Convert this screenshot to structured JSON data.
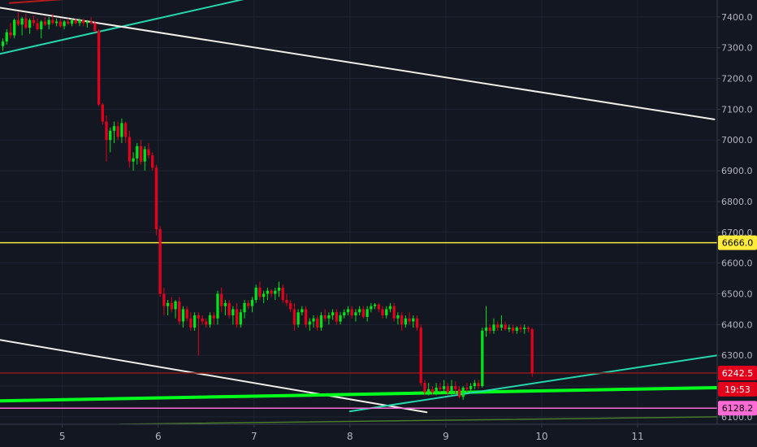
{
  "chart_data": {
    "type": "candlestick",
    "x_ticks": [
      "5",
      "6",
      "7",
      "8",
      "9",
      "10",
      "11"
    ],
    "y_ticks": [
      "6100.0",
      "6200.0",
      "6300.0",
      "6400.0",
      "6500.0",
      "6600.0",
      "6700.0",
      "6800.0",
      "6900.0",
      "7000.0",
      "7100.0",
      "7200.0",
      "7300.0",
      "7400.0"
    ],
    "ylim": [
      6076,
      7455
    ],
    "xlim": [
      4.35,
      11.83
    ],
    "grid": true,
    "horizontal_levels": [
      {
        "label": "6666.0",
        "value": 6666.0,
        "color": "#ffeb3b",
        "text_color": "#000000"
      },
      {
        "label": "6242.5",
        "value": 6242.5,
        "color": "#e3001b",
        "text_color": "#ffffff",
        "line_color": "#8b1a1a"
      },
      {
        "label": "6128.2",
        "value": 6128.2,
        "color": "#ff6bd5",
        "text_color": "#000000"
      }
    ],
    "countdown": {
      "label": "19:53",
      "value": 6190,
      "color": "#e3001b",
      "text_color": "#ffffff"
    },
    "trendlines": [
      {
        "name": "upper-channel-line",
        "color": "#26d7ae",
        "width": 2,
        "points": [
          [
            4.35,
            7280
          ],
          [
            7.5,
            7500
          ]
        ]
      },
      {
        "name": "top-red-line",
        "color": "#b71c1c",
        "width": 2,
        "points": [
          [
            4.45,
            7445
          ],
          [
            7.15,
            7505
          ]
        ]
      },
      {
        "name": "white-resistance-line",
        "color": "#f0eee6",
        "width": 2,
        "points": [
          [
            4.35,
            7430
          ],
          [
            11.8,
            7067
          ]
        ]
      },
      {
        "name": "white-lower-line",
        "color": "#f0eee6",
        "width": 2,
        "points": [
          [
            4.35,
            6350
          ],
          [
            8.8,
            6115
          ]
        ]
      },
      {
        "name": "green-support-line",
        "color": "#00ff1a",
        "width": 4,
        "points": [
          [
            4.35,
            6152
          ],
          [
            11.83,
            6195
          ]
        ]
      },
      {
        "name": "cyan-support-line",
        "color": "#26d7ae",
        "width": 2,
        "points": [
          [
            8.0,
            6118
          ],
          [
            11.83,
            6300
          ]
        ]
      },
      {
        "name": "olive-lower-line",
        "color": "#4a7a2a",
        "width": 1.5,
        "points": [
          [
            5.6,
            6076
          ],
          [
            11.83,
            6100
          ]
        ]
      }
    ],
    "candles": [
      [
        4.38,
        7305,
        7330,
        7290,
        7320
      ],
      [
        4.42,
        7320,
        7360,
        7310,
        7350
      ],
      [
        4.46,
        7350,
        7380,
        7330,
        7340
      ],
      [
        4.5,
        7340,
        7395,
        7330,
        7390
      ],
      [
        4.54,
        7390,
        7415,
        7370,
        7375
      ],
      [
        4.58,
        7375,
        7400,
        7340,
        7395
      ],
      [
        4.62,
        7395,
        7410,
        7360,
        7365
      ],
      [
        4.66,
        7365,
        7395,
        7345,
        7390
      ],
      [
        4.7,
        7390,
        7405,
        7370,
        7380
      ],
      [
        4.74,
        7380,
        7395,
        7355,
        7360
      ],
      [
        4.78,
        7360,
        7390,
        7330,
        7385
      ],
      [
        4.82,
        7385,
        7400,
        7370,
        7375
      ],
      [
        4.86,
        7375,
        7400,
        7360,
        7390
      ],
      [
        4.9,
        7390,
        7410,
        7375,
        7380
      ],
      [
        4.94,
        7380,
        7395,
        7370,
        7385
      ],
      [
        4.98,
        7385,
        7395,
        7365,
        7370
      ],
      [
        5.02,
        7370,
        7390,
        7360,
        7385
      ],
      [
        5.06,
        7385,
        7395,
        7375,
        7378
      ],
      [
        5.1,
        7378,
        7395,
        7370,
        7390
      ],
      [
        5.14,
        7390,
        7395,
        7375,
        7380
      ],
      [
        5.18,
        7380,
        7395,
        7370,
        7390
      ],
      [
        5.22,
        7390,
        7395,
        7370,
        7380
      ],
      [
        5.26,
        7380,
        7390,
        7365,
        7385
      ],
      [
        5.3,
        7385,
        7400,
        7375,
        7380
      ],
      [
        5.34,
        7380,
        7385,
        7350,
        7355
      ],
      [
        5.38,
        7355,
        7360,
        7110,
        7115
      ],
      [
        5.42,
        7115,
        7120,
        7050,
        7060
      ],
      [
        5.46,
        7060,
        7080,
        6930,
        7000
      ],
      [
        5.5,
        7000,
        7040,
        6960,
        7030
      ],
      [
        5.54,
        7030,
        7060,
        6990,
        7045
      ],
      [
        5.58,
        7045,
        7060,
        7000,
        7010
      ],
      [
        5.62,
        7010,
        7070,
        6990,
        7055
      ],
      [
        5.66,
        7055,
        7060,
        6990,
        7010
      ],
      [
        5.7,
        7010,
        7030,
        6910,
        6930
      ],
      [
        5.74,
        6930,
        6960,
        6900,
        6940
      ],
      [
        5.78,
        6940,
        6990,
        6920,
        6980
      ],
      [
        5.82,
        6980,
        7000,
        6920,
        6930
      ],
      [
        5.86,
        6930,
        6980,
        6900,
        6970
      ],
      [
        5.9,
        6970,
        6990,
        6940,
        6950
      ],
      [
        5.94,
        6950,
        6960,
        6900,
        6910
      ],
      [
        5.98,
        6910,
        6920,
        6690,
        6710
      ],
      [
        6.02,
        6710,
        6720,
        6490,
        6500
      ],
      [
        6.06,
        6500,
        6520,
        6430,
        6460
      ],
      [
        6.1,
        6460,
        6480,
        6430,
        6470
      ],
      [
        6.14,
        6470,
        6490,
        6440,
        6450
      ],
      [
        6.18,
        6450,
        6480,
        6420,
        6475
      ],
      [
        6.22,
        6475,
        6490,
        6400,
        6410
      ],
      [
        6.26,
        6410,
        6460,
        6390,
        6450
      ],
      [
        6.3,
        6450,
        6460,
        6410,
        6420
      ],
      [
        6.34,
        6420,
        6440,
        6380,
        6390
      ],
      [
        6.38,
        6390,
        6440,
        6380,
        6430
      ],
      [
        6.42,
        6430,
        6440,
        6300,
        6420
      ],
      [
        6.46,
        6420,
        6430,
        6400,
        6410
      ],
      [
        6.5,
        6410,
        6420,
        6390,
        6400
      ],
      [
        6.54,
        6400,
        6440,
        6390,
        6430
      ],
      [
        6.58,
        6430,
        6440,
        6400,
        6420
      ],
      [
        6.62,
        6420,
        6510,
        6400,
        6500
      ],
      [
        6.66,
        6500,
        6520,
        6440,
        6460
      ],
      [
        6.7,
        6460,
        6480,
        6430,
        6470
      ],
      [
        6.74,
        6470,
        6480,
        6420,
        6430
      ],
      [
        6.78,
        6430,
        6460,
        6400,
        6450
      ],
      [
        6.82,
        6450,
        6470,
        6390,
        6400
      ],
      [
        6.86,
        6400,
        6450,
        6390,
        6440
      ],
      [
        6.9,
        6440,
        6480,
        6420,
        6470
      ],
      [
        6.94,
        6470,
        6480,
        6450,
        6460
      ],
      [
        6.98,
        6460,
        6490,
        6440,
        6480
      ],
      [
        7.02,
        6480,
        6530,
        6470,
        6520
      ],
      [
        7.06,
        6520,
        6540,
        6480,
        6490
      ],
      [
        7.1,
        6490,
        6510,
        6470,
        6500
      ],
      [
        7.14,
        6500,
        6520,
        6480,
        6510
      ],
      [
        7.18,
        6510,
        6515,
        6490,
        6500
      ],
      [
        7.22,
        6500,
        6520,
        6480,
        6510
      ],
      [
        7.26,
        6510,
        6540,
        6490,
        6520
      ],
      [
        7.3,
        6520,
        6530,
        6470,
        6480
      ],
      [
        7.34,
        6480,
        6500,
        6460,
        6470
      ],
      [
        7.38,
        6470,
        6480,
        6440,
        6450
      ],
      [
        7.42,
        6450,
        6470,
        6380,
        6400
      ],
      [
        7.46,
        6400,
        6450,
        6390,
        6440
      ],
      [
        7.5,
        6440,
        6460,
        6430,
        6450
      ],
      [
        7.54,
        6450,
        6460,
        6390,
        6400
      ],
      [
        7.58,
        6400,
        6420,
        6380,
        6410
      ],
      [
        7.62,
        6410,
        6430,
        6390,
        6420
      ],
      [
        7.66,
        6420,
        6430,
        6380,
        6390
      ],
      [
        7.7,
        6390,
        6440,
        6380,
        6430
      ],
      [
        7.74,
        6430,
        6450,
        6410,
        6420
      ],
      [
        7.78,
        6420,
        6440,
        6400,
        6430
      ],
      [
        7.82,
        6430,
        6450,
        6415,
        6440
      ],
      [
        7.86,
        6440,
        6450,
        6400,
        6410
      ],
      [
        7.9,
        6410,
        6440,
        6400,
        6430
      ],
      [
        7.94,
        6430,
        6450,
        6420,
        6440
      ],
      [
        7.98,
        6440,
        6460,
        6430,
        6450
      ],
      [
        8.02,
        6450,
        6460,
        6420,
        6430
      ],
      [
        8.06,
        6430,
        6450,
        6410,
        6440
      ],
      [
        8.1,
        6440,
        6460,
        6430,
        6450
      ],
      [
        8.14,
        6450,
        6460,
        6420,
        6425
      ],
      [
        8.18,
        6425,
        6460,
        6410,
        6450
      ],
      [
        8.22,
        6450,
        6470,
        6440,
        6460
      ],
      [
        8.26,
        6460,
        6470,
        6450,
        6465
      ],
      [
        8.3,
        6465,
        6470,
        6440,
        6450
      ],
      [
        8.34,
        6450,
        6460,
        6420,
        6430
      ],
      [
        8.38,
        6430,
        6460,
        6420,
        6450
      ],
      [
        8.42,
        6450,
        6470,
        6440,
        6460
      ],
      [
        8.46,
        6460,
        6470,
        6410,
        6420
      ],
      [
        8.5,
        6420,
        6440,
        6400,
        6430
      ],
      [
        8.54,
        6430,
        6440,
        6380,
        6400
      ],
      [
        8.58,
        6400,
        6430,
        6390,
        6420
      ],
      [
        8.62,
        6420,
        6440,
        6400,
        6410
      ],
      [
        8.66,
        6410,
        6430,
        6390,
        6420
      ],
      [
        8.7,
        6420,
        6430,
        6380,
        6390
      ],
      [
        8.74,
        6390,
        6400,
        6200,
        6210
      ],
      [
        8.78,
        6210,
        6220,
        6170,
        6180
      ],
      [
        8.82,
        6180,
        6210,
        6170,
        6190
      ],
      [
        8.86,
        6190,
        6200,
        6170,
        6180
      ],
      [
        8.9,
        6180,
        6210,
        6170,
        6195
      ],
      [
        8.94,
        6195,
        6210,
        6180,
        6190
      ],
      [
        8.98,
        6190,
        6220,
        6180,
        6200
      ],
      [
        9.02,
        6200,
        6210,
        6170,
        6180
      ],
      [
        9.06,
        6180,
        6220,
        6170,
        6200
      ],
      [
        9.1,
        6200,
        6215,
        6175,
        6190
      ],
      [
        9.14,
        6190,
        6200,
        6160,
        6165
      ],
      [
        9.18,
        6165,
        6200,
        6155,
        6195
      ],
      [
        9.22,
        6195,
        6210,
        6180,
        6190
      ],
      [
        9.26,
        6190,
        6210,
        6180,
        6200
      ],
      [
        9.3,
        6200,
        6220,
        6190,
        6210
      ],
      [
        9.34,
        6210,
        6220,
        6190,
        6200
      ],
      [
        9.38,
        6200,
        6390,
        6195,
        6380
      ],
      [
        9.42,
        6380,
        6460,
        6360,
        6390
      ],
      [
        9.46,
        6390,
        6400,
        6370,
        6380
      ],
      [
        9.5,
        6380,
        6420,
        6370,
        6400
      ],
      [
        9.54,
        6400,
        6410,
        6380,
        6390
      ],
      [
        9.58,
        6390,
        6430,
        6380,
        6400
      ],
      [
        9.62,
        6400,
        6410,
        6380,
        6385
      ],
      [
        9.66,
        6385,
        6400,
        6375,
        6390
      ],
      [
        9.7,
        6390,
        6400,
        6370,
        6380
      ],
      [
        9.74,
        6380,
        6395,
        6370,
        6390
      ],
      [
        9.78,
        6390,
        6400,
        6375,
        6385
      ],
      [
        9.82,
        6385,
        6400,
        6370,
        6390
      ],
      [
        9.86,
        6390,
        6395,
        6375,
        6385
      ],
      [
        9.9,
        6385,
        6390,
        6230,
        6242
      ]
    ]
  }
}
